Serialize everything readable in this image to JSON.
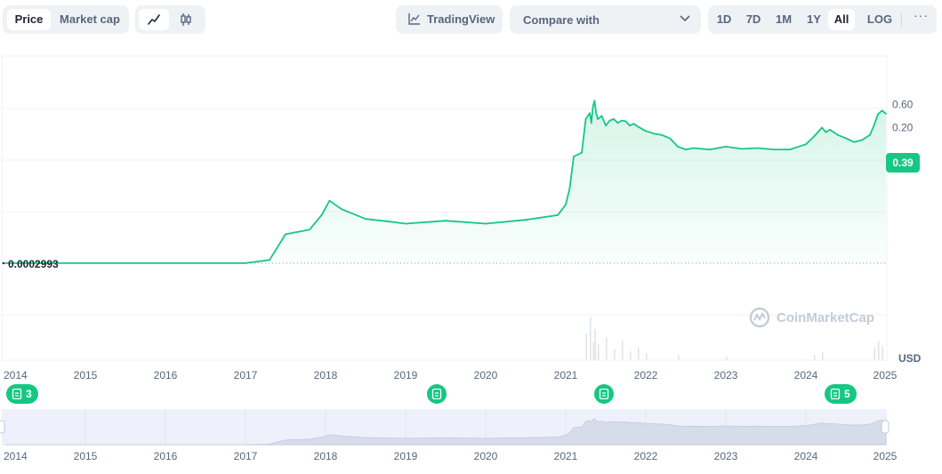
{
  "toolbar": {
    "data_tabs": [
      "Price",
      "Market cap"
    ],
    "active_data_tab": "Price",
    "chart_modes": [
      "line-chart-icon",
      "candlestick-icon"
    ],
    "active_chart_mode": "line-chart-icon",
    "tradingview_label": "TradingView",
    "compare_label": "Compare with",
    "ranges": [
      "1D",
      "7D",
      "1M",
      "1Y",
      "All"
    ],
    "active_range": "All",
    "log_label": "LOG",
    "more_label": "···"
  },
  "price_badge": "0.39",
  "currency_label": "USD",
  "baseline_label": "0.0002993",
  "watermark": "CoinMarketCap",
  "news_markers": [
    {
      "year": "2014",
      "count": "3"
    },
    {
      "year": "2019.4",
      "count": ""
    },
    {
      "year": "2021.5",
      "count": ""
    },
    {
      "year": "2024.4",
      "count": "5"
    }
  ],
  "colors": {
    "line": "#16c784",
    "badge": "#16c784",
    "nav_fill": "#eef1fb",
    "grid": "#eff2f5",
    "text_muted": "#58667e"
  },
  "chart_data": {
    "type": "area",
    "scale": "log",
    "ylabel": "USD",
    "y_ticks": [
      "0.60",
      "0.20"
    ],
    "x_ticks": [
      "2014",
      "2015",
      "2016",
      "2017",
      "2018",
      "2019",
      "2020",
      "2021",
      "2022",
      "2023",
      "2024",
      "2025"
    ],
    "xlim": [
      2014.0,
      2025.0
    ],
    "baseline_value": 0.0002993,
    "last_value": 0.39,
    "series": [
      {
        "x": [
          2014.0,
          2014.5,
          2015.0,
          2015.5,
          2016.0,
          2016.5,
          2017.0,
          2017.3,
          2017.5,
          2017.8,
          2017.95,
          2018.05,
          2018.2,
          2018.5,
          2018.8,
          2019.0,
          2019.5,
          2020.0,
          2020.5,
          2020.9,
          2021.0,
          2021.05,
          2021.1,
          2021.2,
          2021.25,
          2021.3,
          2021.32,
          2021.34,
          2021.36,
          2021.38,
          2021.4,
          2021.45,
          2021.5,
          2021.55,
          2021.6,
          2021.65,
          2021.7,
          2021.75,
          2021.8,
          2021.85,
          2021.9,
          2022.0,
          2022.1,
          2022.2,
          2022.3,
          2022.4,
          2022.5,
          2022.6,
          2022.8,
          2023.0,
          2023.2,
          2023.4,
          2023.6,
          2023.8,
          2024.0,
          2024.1,
          2024.2,
          2024.25,
          2024.3,
          2024.4,
          2024.5,
          2024.6,
          2024.7,
          2024.8,
          2024.85,
          2024.9,
          2024.95,
          2025.0
        ],
        "values": [
          0.0003,
          0.0003,
          0.0003,
          0.0003,
          0.0003,
          0.0003,
          0.0003,
          0.00035,
          0.0012,
          0.0015,
          0.003,
          0.006,
          0.004,
          0.0025,
          0.0022,
          0.002,
          0.0023,
          0.002,
          0.0024,
          0.003,
          0.005,
          0.011,
          0.05,
          0.06,
          0.3,
          0.4,
          0.25,
          0.55,
          0.72,
          0.4,
          0.3,
          0.35,
          0.22,
          0.28,
          0.3,
          0.25,
          0.28,
          0.27,
          0.22,
          0.24,
          0.21,
          0.17,
          0.15,
          0.14,
          0.12,
          0.08,
          0.07,
          0.075,
          0.07,
          0.08,
          0.072,
          0.075,
          0.07,
          0.07,
          0.09,
          0.13,
          0.2,
          0.16,
          0.18,
          0.14,
          0.12,
          0.1,
          0.11,
          0.14,
          0.22,
          0.38,
          0.45,
          0.39
        ]
      }
    ]
  }
}
